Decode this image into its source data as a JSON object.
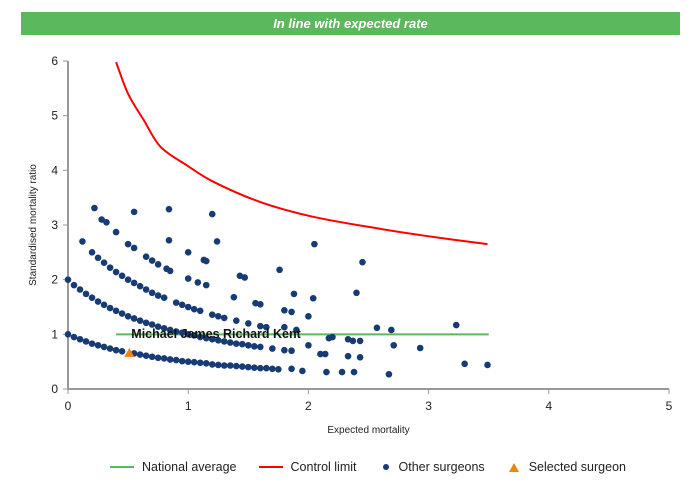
{
  "banner": {
    "text": "In line with expected rate",
    "color": "#5cb85c"
  },
  "chart_data": {
    "type": "scatter",
    "xlabel": "Expected mortality",
    "ylabel": "Standardised mortality ratio",
    "xlim": [
      0,
      5
    ],
    "ylim": [
      0,
      6
    ],
    "xticks": [
      "0",
      "1",
      "2",
      "3",
      "4",
      "5"
    ],
    "yticks": [
      "0",
      "1",
      "2",
      "3",
      "4",
      "5",
      "6"
    ],
    "grid": false,
    "legend": "bottom",
    "series": [
      {
        "name": "National average",
        "type": "line",
        "color": "#5cb85c",
        "points": [
          [
            0.4,
            1
          ],
          [
            3.5,
            1
          ]
        ]
      },
      {
        "name": "Control limit",
        "type": "line",
        "color": "#ff0000",
        "points": [
          [
            0.4,
            5.98
          ],
          [
            0.5,
            5.4
          ],
          [
            0.63,
            4.92
          ],
          [
            0.77,
            4.43
          ],
          [
            0.99,
            4.09
          ],
          [
            1.21,
            3.79
          ],
          [
            1.6,
            3.42
          ],
          [
            2.04,
            3.15
          ],
          [
            2.57,
            2.94
          ],
          [
            2.98,
            2.8
          ],
          [
            3.49,
            2.65
          ]
        ]
      },
      {
        "name": "Other surgeons",
        "type": "scatter",
        "color": "#163b75",
        "points": [
          [
            0,
            1
          ],
          [
            0.05,
            0.95
          ],
          [
            0.1,
            0.91
          ],
          [
            0.15,
            0.87
          ],
          [
            0.2,
            0.83
          ],
          [
            0.25,
            0.8
          ],
          [
            0.3,
            0.77
          ],
          [
            0.35,
            0.74
          ],
          [
            0.4,
            0.71
          ],
          [
            0.45,
            0.69
          ],
          [
            0.55,
            0.65
          ],
          [
            0.6,
            0.63
          ],
          [
            0.65,
            0.61
          ],
          [
            0.7,
            0.59
          ],
          [
            0.75,
            0.57
          ],
          [
            0.8,
            0.56
          ],
          [
            0.85,
            0.54
          ],
          [
            0.9,
            0.53
          ],
          [
            0.95,
            0.51
          ],
          [
            1,
            0.5
          ],
          [
            1.05,
            0.49
          ],
          [
            1.1,
            0.48
          ],
          [
            1.15,
            0.47
          ],
          [
            1.2,
            0.45
          ],
          [
            1.25,
            0.44
          ],
          [
            1.3,
            0.43
          ],
          [
            1.35,
            0.43
          ],
          [
            1.4,
            0.42
          ],
          [
            1.45,
            0.41
          ],
          [
            1.5,
            0.4
          ],
          [
            1.55,
            0.39
          ],
          [
            1.6,
            0.38
          ],
          [
            1.65,
            0.38
          ],
          [
            1.7,
            0.37
          ],
          [
            1.75,
            0.36
          ],
          [
            1.86,
            0.37
          ],
          [
            1.95,
            0.33
          ],
          [
            0,
            2
          ],
          [
            0.05,
            1.9
          ],
          [
            0.1,
            1.82
          ],
          [
            0.15,
            1.74
          ],
          [
            0.2,
            1.67
          ],
          [
            0.25,
            1.6
          ],
          [
            0.3,
            1.54
          ],
          [
            0.35,
            1.48
          ],
          [
            0.4,
            1.43
          ],
          [
            0.45,
            1.38
          ],
          [
            0.5,
            1.33
          ],
          [
            0.55,
            1.29
          ],
          [
            0.6,
            1.25
          ],
          [
            0.65,
            1.21
          ],
          [
            0.7,
            1.18
          ],
          [
            0.75,
            1.14
          ],
          [
            0.8,
            1.11
          ],
          [
            0.85,
            1.08
          ],
          [
            0.9,
            1.05
          ],
          [
            0.95,
            1.03
          ],
          [
            1,
            1
          ],
          [
            1.05,
            0.98
          ],
          [
            1.1,
            0.95
          ],
          [
            1.15,
            0.93
          ],
          [
            1.2,
            0.91
          ],
          [
            1.25,
            0.89
          ],
          [
            1.3,
            0.87
          ],
          [
            1.35,
            0.85
          ],
          [
            1.4,
            0.83
          ],
          [
            1.45,
            0.82
          ],
          [
            1.5,
            0.8
          ],
          [
            1.55,
            0.78
          ],
          [
            1.6,
            0.77
          ],
          [
            1.7,
            0.74
          ],
          [
            1.8,
            0.71
          ],
          [
            1.86,
            0.7
          ],
          [
            0.2,
            2.5
          ],
          [
            0.25,
            2.4
          ],
          [
            0.3,
            2.31
          ],
          [
            0.35,
            2.22
          ],
          [
            0.4,
            2.14
          ],
          [
            0.45,
            2.07
          ],
          [
            0.5,
            2
          ],
          [
            0.55,
            1.94
          ],
          [
            0.6,
            1.88
          ],
          [
            0.65,
            1.82
          ],
          [
            0.7,
            1.76
          ],
          [
            0.75,
            1.71
          ],
          [
            0.8,
            1.67
          ],
          [
            0.9,
            1.58
          ],
          [
            0.95,
            1.54
          ],
          [
            1,
            1.5
          ],
          [
            1.05,
            1.46
          ],
          [
            1.1,
            1.43
          ],
          [
            1.2,
            1.36
          ],
          [
            1.25,
            1.33
          ],
          [
            1.3,
            1.3
          ],
          [
            1.4,
            1.25
          ],
          [
            1.5,
            1.2
          ],
          [
            1.6,
            1.15
          ],
          [
            1.65,
            1.13
          ],
          [
            0.28,
            3.1
          ],
          [
            0.32,
            3.05
          ],
          [
            0.4,
            2.87
          ],
          [
            0.5,
            2.65
          ],
          [
            0.55,
            2.58
          ],
          [
            0.65,
            2.42
          ],
          [
            0.7,
            2.35
          ],
          [
            0.75,
            2.28
          ],
          [
            0.82,
            2.2
          ],
          [
            0.85,
            2.16
          ],
          [
            1,
            2.02
          ],
          [
            1.08,
            1.95
          ],
          [
            1.15,
            1.9
          ],
          [
            0.22,
            3.31
          ],
          [
            0.55,
            3.24
          ],
          [
            0.84,
            3.29
          ],
          [
            1.2,
            3.2
          ],
          [
            0.12,
            2.7
          ],
          [
            0.84,
            2.72
          ],
          [
            1.24,
            2.7
          ],
          [
            1,
            2.5
          ],
          [
            1.13,
            2.36
          ],
          [
            1.15,
            2.34
          ],
          [
            1.43,
            2.07
          ],
          [
            1.47,
            2.04
          ],
          [
            1.38,
            1.68
          ],
          [
            1.56,
            1.57
          ],
          [
            1.6,
            1.55
          ],
          [
            1.76,
            2.18
          ],
          [
            2.05,
            2.65
          ],
          [
            2.45,
            2.32
          ],
          [
            1.88,
            1.74
          ],
          [
            2.4,
            1.76
          ],
          [
            2.04,
            1.66
          ],
          [
            1.8,
            1.44
          ],
          [
            1.86,
            1.41
          ],
          [
            2,
            1.33
          ],
          [
            1.8,
            1.13
          ],
          [
            1.9,
            1.08
          ],
          [
            2,
            0.8
          ],
          [
            2.17,
            0.93
          ],
          [
            2.2,
            0.95
          ],
          [
            2.57,
            1.12
          ],
          [
            2.69,
            1.08
          ],
          [
            3.23,
            1.17
          ],
          [
            2.33,
            0.91
          ],
          [
            2.37,
            0.88
          ],
          [
            2.43,
            0.88
          ],
          [
            2.71,
            0.8
          ],
          [
            2.93,
            0.75
          ],
          [
            2.1,
            0.64
          ],
          [
            2.14,
            0.64
          ],
          [
            2.33,
            0.6
          ],
          [
            2.43,
            0.58
          ],
          [
            3.3,
            0.46
          ],
          [
            3.49,
            0.44
          ],
          [
            2.15,
            0.31
          ],
          [
            2.28,
            0.31
          ],
          [
            2.38,
            0.31
          ],
          [
            2.67,
            0.27
          ]
        ]
      },
      {
        "name": "Selected surgeon",
        "type": "scatter",
        "color": "#f5820d",
        "points": [
          [
            0.51,
            0.66
          ]
        ],
        "label": "Michael James Richard Kent"
      }
    ]
  }
}
